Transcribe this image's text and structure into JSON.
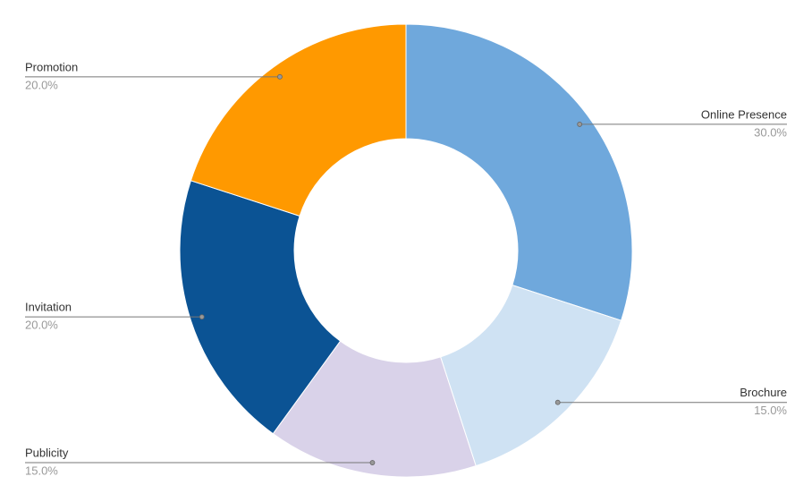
{
  "chart_data": {
    "type": "donut",
    "categories": [
      "Online Presence",
      "Brochure",
      "Publicity",
      "Invitation",
      "Promotion"
    ],
    "values": [
      30,
      15,
      15,
      20,
      20
    ],
    "value_labels": [
      "30.0%",
      "15.0%",
      "15.0%",
      "20.0%",
      "20.0%"
    ],
    "colors": [
      "#6fa8dc",
      "#cfe2f3",
      "#d9d2e9",
      "#0b5394",
      "#ff9900"
    ]
  }
}
